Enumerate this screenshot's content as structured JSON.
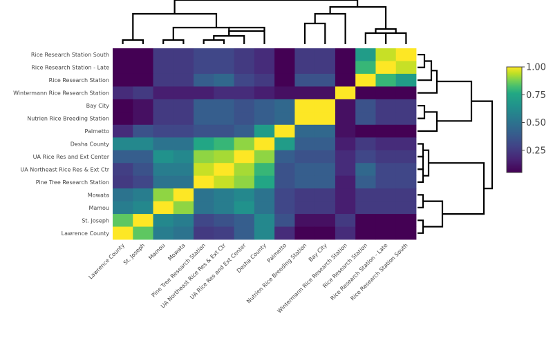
{
  "chart_data": {
    "type": "heatmap",
    "title": "",
    "xlabel": "",
    "ylabel": "",
    "labels": [
      "Lawrence County",
      "St. Joseph",
      "Mamou",
      "Mowata",
      "Pine Tree Research Station",
      "UA Northeast Rice Res & Ext Ctr",
      "UA Rice Res and Ext Center",
      "Desha County",
      "Palmetto",
      "Nutrien Rice Breeding Station",
      "Bay City",
      "Wintermann Rice Research Station",
      "Rice Research Station",
      "Rice Research Station - Late",
      "Rice Research Station South"
    ],
    "rows_top_to_bottom": [
      "Rice Research Station South",
      "Rice Research Station - Late",
      "Rice Research Station",
      "Wintermann Rice Research Station",
      "Bay City",
      "Nutrien Rice Breeding Station",
      "Palmetto",
      "Desha County",
      "UA Rice Res and Ext Center",
      "UA Northeast Rice Res & Ext Ctr",
      "Pine Tree Research Station",
      "Mowata",
      "Mamou",
      "St. Joseph",
      "Lawrence County"
    ],
    "matrix": [
      [
        1.0,
        0.85,
        0.55,
        0.5,
        0.25,
        0.27,
        0.4,
        0.6,
        0.2,
        0.05,
        0.05,
        0.2,
        0.02,
        0.02,
        0.03
      ],
      [
        0.85,
        1.0,
        0.6,
        0.55,
        0.3,
        0.35,
        0.4,
        0.6,
        0.35,
        0.1,
        0.1,
        0.25,
        0.03,
        0.03,
        0.04
      ],
      [
        0.55,
        0.6,
        1.0,
        0.9,
        0.5,
        0.55,
        0.65,
        0.5,
        0.3,
        0.25,
        0.25,
        0.15,
        0.25,
        0.25,
        0.25
      ],
      [
        0.5,
        0.55,
        0.9,
        1.0,
        0.5,
        0.55,
        0.6,
        0.5,
        0.3,
        0.25,
        0.25,
        0.15,
        0.25,
        0.25,
        0.25
      ],
      [
        0.25,
        0.3,
        0.5,
        0.5,
        1.0,
        0.95,
        0.9,
        0.75,
        0.35,
        0.4,
        0.4,
        0.15,
        0.4,
        0.3,
        0.3
      ],
      [
        0.27,
        0.35,
        0.55,
        0.55,
        0.95,
        1.0,
        0.92,
        0.8,
        0.35,
        0.4,
        0.4,
        0.2,
        0.45,
        0.3,
        0.3
      ],
      [
        0.4,
        0.4,
        0.65,
        0.6,
        0.9,
        0.92,
        1.0,
        0.9,
        0.4,
        0.35,
        0.35,
        0.2,
        0.3,
        0.25,
        0.25
      ],
      [
        0.6,
        0.6,
        0.5,
        0.5,
        0.75,
        0.8,
        0.9,
        1.0,
        0.7,
        0.4,
        0.4,
        0.15,
        0.25,
        0.2,
        0.2
      ],
      [
        0.2,
        0.35,
        0.3,
        0.3,
        0.35,
        0.35,
        0.4,
        0.7,
        1.0,
        0.45,
        0.45,
        0.1,
        0.05,
        0.05,
        0.05
      ],
      [
        0.05,
        0.1,
        0.25,
        0.25,
        0.4,
        0.4,
        0.35,
        0.4,
        0.45,
        1.0,
        1.0,
        0.1,
        0.35,
        0.25,
        0.25
      ],
      [
        0.05,
        0.1,
        0.25,
        0.25,
        0.4,
        0.4,
        0.35,
        0.4,
        0.45,
        1.0,
        1.0,
        0.1,
        0.35,
        0.25,
        0.25
      ],
      [
        0.2,
        0.25,
        0.15,
        0.15,
        0.15,
        0.2,
        0.2,
        0.15,
        0.1,
        0.1,
        0.1,
        1.0,
        0.05,
        0.05,
        0.05
      ],
      [
        0.02,
        0.03,
        0.25,
        0.25,
        0.4,
        0.45,
        0.3,
        0.25,
        0.05,
        0.35,
        0.35,
        0.05,
        1.0,
        0.8,
        0.7
      ],
      [
        0.02,
        0.03,
        0.25,
        0.25,
        0.3,
        0.3,
        0.25,
        0.2,
        0.05,
        0.25,
        0.25,
        0.05,
        0.8,
        1.0,
        0.95
      ],
      [
        0.03,
        0.04,
        0.25,
        0.25,
        0.3,
        0.3,
        0.25,
        0.2,
        0.05,
        0.25,
        0.25,
        0.05,
        0.7,
        0.95,
        1.0
      ]
    ],
    "colorscale": "viridis",
    "colorbar": {
      "range": [
        0.05,
        1.0
      ],
      "ticks": [
        0.25,
        0.5,
        0.75,
        1.0
      ],
      "tick_labels": [
        "0.25",
        "0.50",
        "0.75",
        "1.00"
      ]
    },
    "legend": "none",
    "dendrograms": [
      "top",
      "right"
    ]
  }
}
